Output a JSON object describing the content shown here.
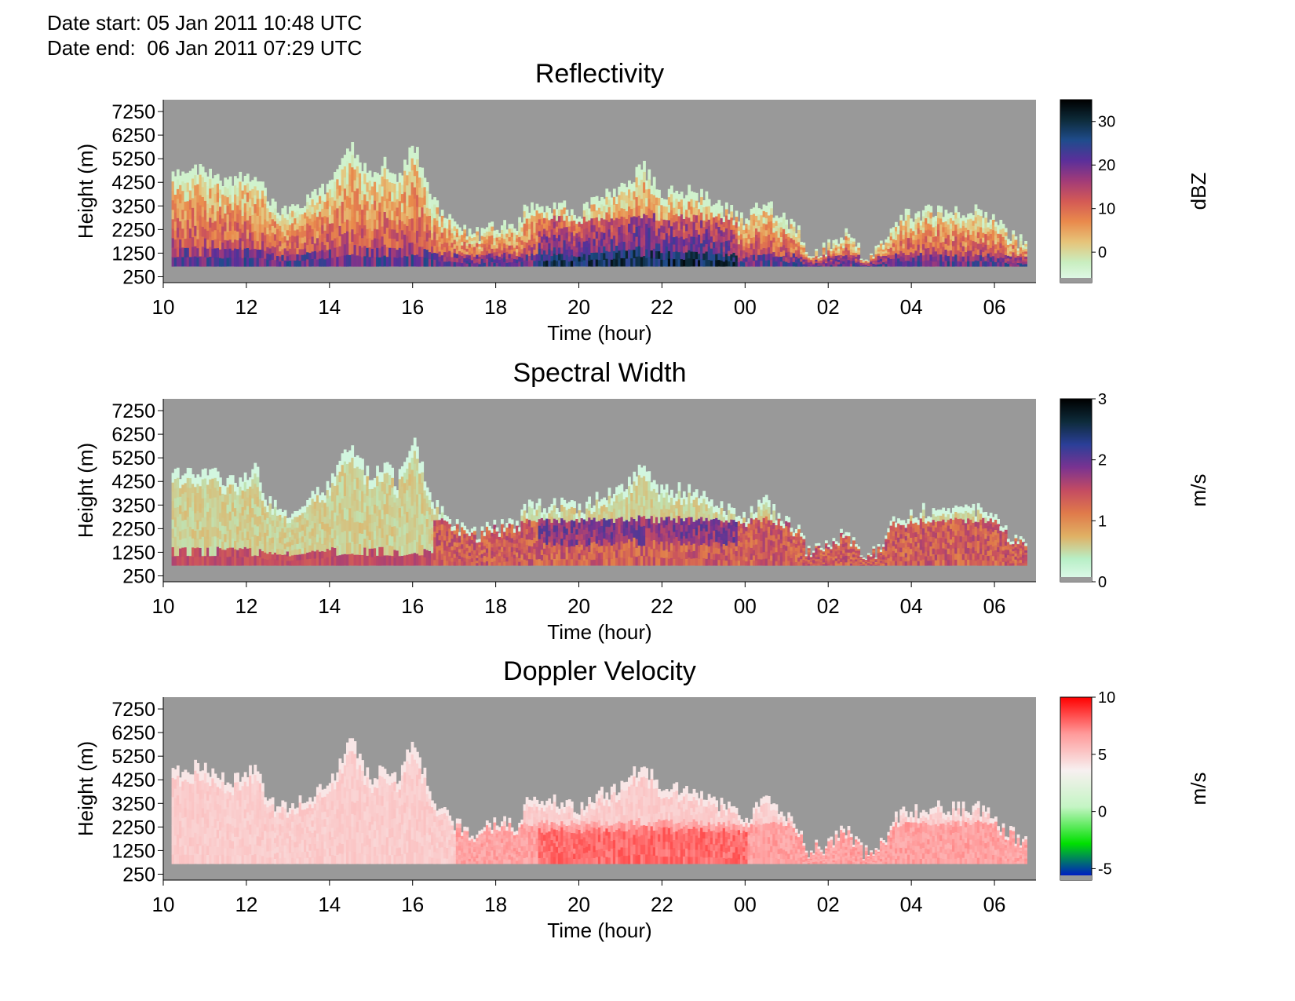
{
  "header": {
    "date_start": "Date start: 05 Jan 2011 10:48 UTC",
    "date_end": "Date end:  06 Jan 2011 07:29 UTC"
  },
  "colors": {
    "background_no_data": "#999999",
    "reflectivity_scale": [
      "#e3fbef",
      "#c9eec0",
      "#e6c47a",
      "#e98a4c",
      "#d45a55",
      "#a23b78",
      "#5b2f9a",
      "#1f4c8c",
      "#0d2b3a",
      "#000000"
    ],
    "spectral_width_scale": [
      "#e3fbef",
      "#b8efc6",
      "#e0b064",
      "#e07a4a",
      "#c44b62",
      "#7a3391",
      "#2b3f98",
      "#0d2b3a",
      "#000000"
    ],
    "velocity_scale_positive": [
      "#f7f0f0",
      "#ff9a9a",
      "#ff0000"
    ],
    "velocity_scale_negative": [
      "#c4f5c4",
      "#00e000",
      "#0000e0"
    ]
  },
  "chart_data": [
    {
      "type": "heatmap",
      "title": "Reflectivity",
      "xlabel": "Time (hour)",
      "ylabel": "Height (m)",
      "xlim": [
        10.0,
        31.0
      ],
      "xticks": [
        "10",
        "12",
        "14",
        "16",
        "18",
        "20",
        "22",
        "00",
        "02",
        "04",
        "06"
      ],
      "ylim": [
        0,
        7750
      ],
      "yticks": [
        "7250",
        "6250",
        "5250",
        "4250",
        "3250",
        "2250",
        "1250",
        "250"
      ],
      "colorbar": {
        "label": "dBZ",
        "range": [
          -7,
          35
        ],
        "ticks": [
          "30",
          "20",
          "10",
          "0"
        ]
      },
      "data_start_hour": 10.2,
      "data_end_hour": 30.75,
      "cloud_top_profile": [
        [
          10.2,
          4600
        ],
        [
          10.5,
          4700
        ],
        [
          11.0,
          4800
        ],
        [
          11.5,
          4200
        ],
        [
          12.0,
          4500
        ],
        [
          12.2,
          4800
        ],
        [
          12.5,
          3300
        ],
        [
          13.0,
          3000
        ],
        [
          13.5,
          3500
        ],
        [
          14.0,
          4200
        ],
        [
          14.5,
          5900
        ],
        [
          14.8,
          4800
        ],
        [
          15.0,
          4300
        ],
        [
          15.3,
          5000
        ],
        [
          15.6,
          4200
        ],
        [
          16.0,
          5900
        ],
        [
          16.3,
          4300
        ],
        [
          16.6,
          3000
        ],
        [
          17.0,
          2400
        ],
        [
          17.5,
          2000
        ],
        [
          18.0,
          2400
        ],
        [
          18.5,
          2400
        ],
        [
          18.7,
          3200
        ],
        [
          19.5,
          3300
        ],
        [
          20.0,
          3000
        ],
        [
          20.5,
          3600
        ],
        [
          21.0,
          4000
        ],
        [
          21.5,
          4900
        ],
        [
          22.0,
          3800
        ],
        [
          22.5,
          3900
        ],
        [
          23.0,
          3600
        ],
        [
          23.5,
          3100
        ],
        [
          23.8,
          2800
        ],
        [
          24.0,
          2600
        ],
        [
          24.4,
          3500
        ],
        [
          24.8,
          2800
        ],
        [
          25.2,
          2300
        ],
        [
          25.5,
          1300
        ],
        [
          26.0,
          1500
        ],
        [
          26.4,
          2200
        ],
        [
          26.8,
          1200
        ],
        [
          27.2,
          1400
        ],
        [
          27.6,
          2700
        ],
        [
          28.0,
          2900
        ],
        [
          28.5,
          3100
        ],
        [
          29.0,
          3000
        ],
        [
          29.5,
          3100
        ],
        [
          29.9,
          2800
        ],
        [
          30.2,
          2200
        ],
        [
          30.5,
          1800
        ],
        [
          30.75,
          1600
        ]
      ]
    },
    {
      "type": "heatmap",
      "title": "Spectral Width",
      "xlabel": "Time (hour)",
      "ylabel": "Height (m)",
      "xlim": [
        10.0,
        31.0
      ],
      "xticks": [
        "10",
        "12",
        "14",
        "16",
        "18",
        "20",
        "22",
        "00",
        "02",
        "04",
        "06"
      ],
      "ylim": [
        0,
        7750
      ],
      "yticks": [
        "7250",
        "6250",
        "5250",
        "4250",
        "3250",
        "2250",
        "1250",
        "250"
      ],
      "colorbar": {
        "label": "m/s",
        "range": [
          0,
          3
        ],
        "ticks": [
          "3",
          "2",
          "1",
          "0"
        ]
      }
    },
    {
      "type": "heatmap",
      "title": "Doppler Velocity",
      "xlabel": "Time (hour)",
      "ylabel": "Height (m)",
      "xlim": [
        10.0,
        31.0
      ],
      "xticks": [
        "10",
        "12",
        "14",
        "16",
        "18",
        "20",
        "22",
        "00",
        "02",
        "04",
        "06"
      ],
      "ylim": [
        0,
        7750
      ],
      "yticks": [
        "7250",
        "6250",
        "5250",
        "4250",
        "3250",
        "2250",
        "1250",
        "250"
      ],
      "colorbar": {
        "label": "m/s",
        "range": [
          -6,
          10
        ],
        "ticks": [
          "10",
          "5",
          "0",
          "-5"
        ]
      }
    }
  ]
}
